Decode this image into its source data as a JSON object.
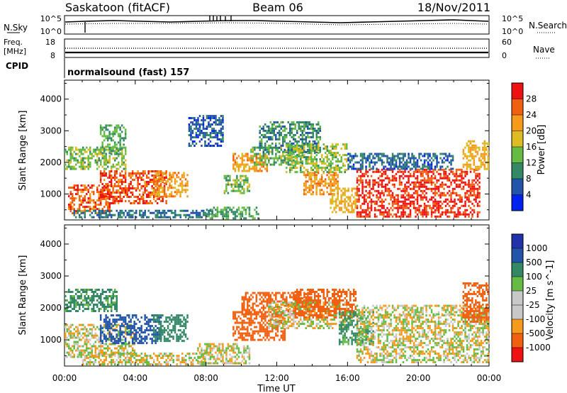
{
  "header": {
    "station": "Saskatoon (fitACF)",
    "beam": "Beam 06",
    "date": "18/Nov/2011"
  },
  "strip_noise": {
    "label": "N.Sky",
    "left_ticks": [
      "10^5",
      "10^0"
    ],
    "right_ticks": [
      "10^5",
      "10^0"
    ],
    "right_label": "N.Search"
  },
  "strip_freq": {
    "label_line1": "Freq.",
    "label_line2": "[MHz]",
    "left_ticks": [
      "18",
      "8"
    ],
    "right_ticks": [
      "60",
      "0"
    ],
    "right_label": "Nave"
  },
  "strip_cpid": {
    "label": "CPID",
    "text": "normalsound (fast) 157"
  },
  "colors": {
    "power": [
      "#0022ee",
      "#2255aa",
      "#338866",
      "#66bb44",
      "#ddbb22",
      "#f59a1a",
      "#f06010",
      "#ee1111"
    ],
    "velocity": [
      "#ee1111",
      "#f06010",
      "#f59a1a",
      "#c8c8c8",
      "#c8c8c8",
      "#66bb44",
      "#338866",
      "#2255aa",
      "#2233aa"
    ],
    "ground_scatter": "#c8c8c8"
  },
  "chart_data": [
    {
      "type": "heatmap",
      "name": "power",
      "xlabel": "Time UT",
      "ylabel": "Slant Range [km]",
      "xlim": [
        0,
        24
      ],
      "ylim": [
        180,
        4600
      ],
      "x_tick_values": [
        0,
        4,
        8,
        12,
        16,
        20,
        24
      ],
      "x_tick_labels": [
        "00:00",
        "04:00",
        "08:00",
        "12:00",
        "16:00",
        "20:00",
        "00:00"
      ],
      "y_tick_values": [
        1000,
        2000,
        3000,
        4000
      ],
      "y_tick_labels": [
        "1000",
        "2000",
        "3000",
        "4000"
      ],
      "colorbar_label": "Power [dB]",
      "colorbar_ticks": [
        "28",
        "24",
        "20",
        "16",
        "12",
        "8",
        "4"
      ],
      "colorbar_range": [
        0,
        32
      ],
      "regions": [
        {
          "t": [
            0.2,
            2.6
          ],
          "r": [
            400,
            1300
          ],
          "value": 26
        },
        {
          "t": [
            2.0,
            5.8
          ],
          "r": [
            700,
            1750
          ],
          "value": 27
        },
        {
          "t": [
            5.0,
            7.0
          ],
          "r": [
            900,
            1700
          ],
          "value": 22
        },
        {
          "t": [
            0.0,
            3.5
          ],
          "r": [
            1800,
            2500
          ],
          "value": 14
        },
        {
          "t": [
            2.0,
            3.5
          ],
          "r": [
            2300,
            3200
          ],
          "value": 12
        },
        {
          "t": [
            0.5,
            8.5
          ],
          "r": [
            250,
            500
          ],
          "value": 8
        },
        {
          "t": [
            7.0,
            9.0
          ],
          "r": [
            2500,
            3500
          ],
          "value": 6
        },
        {
          "t": [
            8.0,
            11.0
          ],
          "r": [
            250,
            600
          ],
          "value": 12
        },
        {
          "t": [
            9.0,
            10.5
          ],
          "r": [
            1000,
            1600
          ],
          "value": 14
        },
        {
          "t": [
            9.5,
            11.5
          ],
          "r": [
            1700,
            2300
          ],
          "value": 22
        },
        {
          "t": [
            10.5,
            13.5
          ],
          "r": [
            1900,
            2500
          ],
          "value": 13
        },
        {
          "t": [
            11.0,
            14.5
          ],
          "r": [
            2300,
            3300
          ],
          "value": 10
        },
        {
          "t": [
            12.5,
            16.0
          ],
          "r": [
            1700,
            2600
          ],
          "value": 15
        },
        {
          "t": [
            13.5,
            15.5
          ],
          "r": [
            1000,
            1700
          ],
          "value": 23
        },
        {
          "t": [
            15.0,
            16.5
          ],
          "r": [
            400,
            1200
          ],
          "value": 20
        },
        {
          "t": [
            16.5,
            23.5
          ],
          "r": [
            300,
            1800
          ],
          "value": 29
        },
        {
          "t": [
            16.0,
            22.0
          ],
          "r": [
            1800,
            2300
          ],
          "value": 7
        },
        {
          "t": [
            22.5,
            24.0
          ],
          "r": [
            1800,
            2700
          ],
          "value": 20
        }
      ]
    },
    {
      "type": "heatmap",
      "name": "velocity",
      "xlabel": "Time UT",
      "ylabel": "Slant Range [km]",
      "xlim": [
        0,
        24
      ],
      "ylim": [
        180,
        4600
      ],
      "x_tick_values": [
        0,
        4,
        8,
        12,
        16,
        20,
        24
      ],
      "x_tick_labels": [
        "00:00",
        "04:00",
        "08:00",
        "12:00",
        "16:00",
        "20:00",
        "00:00"
      ],
      "y_tick_values": [
        1000,
        2000,
        3000,
        4000
      ],
      "y_tick_labels": [
        "1000",
        "2000",
        "3000",
        "4000"
      ],
      "colorbar_label": "Velocity [m s^-1]",
      "colorbar_ticks": [
        "1000",
        "500",
        "100",
        "25",
        "-25",
        "-100",
        "-500",
        "-1000"
      ],
      "regions": [
        {
          "t": [
            0.0,
            4.0
          ],
          "r": [
            500,
            1500
          ],
          "value": 0
        },
        {
          "t": [
            0.0,
            3.0
          ],
          "r": [
            1900,
            2600
          ],
          "value": 150
        },
        {
          "t": [
            2.0,
            5.5
          ],
          "r": [
            900,
            1800
          ],
          "value": 600
        },
        {
          "t": [
            5.0,
            7.0
          ],
          "r": [
            1000,
            1800
          ],
          "value": 200
        },
        {
          "t": [
            1.0,
            8.0
          ],
          "r": [
            250,
            600
          ],
          "value": 0
        },
        {
          "t": [
            7.5,
            10.5
          ],
          "r": [
            300,
            900
          ],
          "value": 0
        },
        {
          "t": [
            9.5,
            12.5
          ],
          "r": [
            1000,
            1900
          ],
          "value": -350
        },
        {
          "t": [
            10.0,
            14.0
          ],
          "r": [
            1800,
            2500
          ],
          "value": -300
        },
        {
          "t": [
            11.5,
            16.0
          ],
          "r": [
            1400,
            2200
          ],
          "value": 0
        },
        {
          "t": [
            13.0,
            16.5
          ],
          "r": [
            1700,
            2600
          ],
          "value": -200
        },
        {
          "t": [
            15.5,
            17.5
          ],
          "r": [
            900,
            1900
          ],
          "value": 150
        },
        {
          "t": [
            16.5,
            24.0
          ],
          "r": [
            300,
            1800
          ],
          "value": 0
        },
        {
          "t": [
            16.5,
            24.0
          ],
          "r": [
            1800,
            2100
          ],
          "value": 0
        },
        {
          "t": [
            22.5,
            24.0
          ],
          "r": [
            1600,
            2800
          ],
          "value": -200
        }
      ]
    }
  ]
}
